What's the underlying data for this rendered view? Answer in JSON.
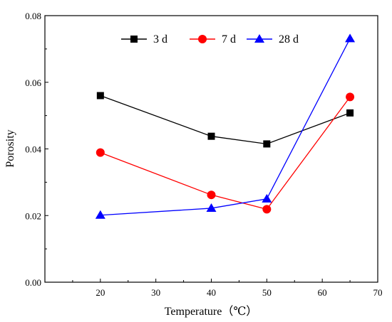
{
  "chart_data": {
    "type": "line",
    "title": "",
    "xlabel": "Temperature（℃）",
    "ylabel": "Porosity",
    "xlim": [
      10,
      70
    ],
    "ylim": [
      0,
      0.08
    ],
    "x_ticks": [
      20,
      30,
      40,
      50,
      60,
      70
    ],
    "y_ticks": [
      0.0,
      0.02,
      0.04,
      0.06,
      0.08
    ],
    "x_tick_labels": [
      "20",
      "30",
      "40",
      "50",
      "60",
      "70"
    ],
    "y_tick_labels": [
      "0.00",
      "0.02",
      "0.04",
      "0.06",
      "0.08"
    ],
    "grid": false,
    "legend_position": "top",
    "series": [
      {
        "name": "3 d",
        "x": [
          20,
          40,
          50,
          65
        ],
        "values": [
          0.056,
          0.0438,
          0.0415,
          0.0508
        ],
        "color": "#000000",
        "marker": "square"
      },
      {
        "name": "7 d",
        "x": [
          20,
          40,
          50,
          65
        ],
        "values": [
          0.0389,
          0.0262,
          0.0219,
          0.0556
        ],
        "color": "#ff0000",
        "marker": "circle"
      },
      {
        "name": "28 d",
        "x": [
          20,
          40,
          50,
          65
        ],
        "values": [
          0.0201,
          0.0222,
          0.025,
          0.0731
        ],
        "color": "#0000ff",
        "marker": "triangle"
      }
    ]
  }
}
